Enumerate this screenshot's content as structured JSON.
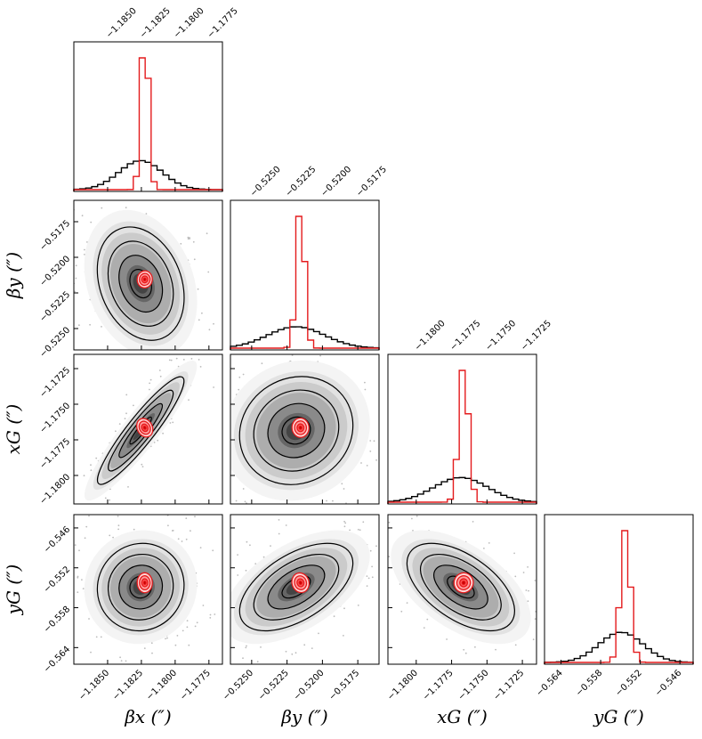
{
  "chart_data": {
    "type": "corner-plot",
    "parameters": [
      {
        "key": "bx",
        "label": "βx (″)",
        "range": [
          -1.1875,
          -1.1765
        ],
        "ticks": [
          -1.185,
          -1.1825,
          -1.18,
          -1.1775
        ],
        "tick_labels": [
          "−1.1850",
          "−1.1825",
          "−1.1800",
          "−1.1775"
        ]
      },
      {
        "key": "by",
        "label": "βy (″)",
        "range": [
          -0.5265,
          -0.516
        ],
        "ticks": [
          -0.525,
          -0.5225,
          -0.52,
          -0.5175
        ],
        "tick_labels": [
          "−0.5250",
          "−0.5225",
          "−0.5200",
          "−0.5175"
        ]
      },
      {
        "key": "xG",
        "label": "xG (″)",
        "range": [
          -1.182,
          -1.1715
        ],
        "ticks": [
          -1.18,
          -1.1775,
          -1.175,
          -1.1725
        ],
        "tick_labels": [
          "−1.1800",
          "−1.1775",
          "−1.1750",
          "−1.1725"
        ]
      },
      {
        "key": "yG",
        "label": "yG (″)",
        "range": [
          -0.5665,
          -0.544
        ],
        "ticks": [
          -0.564,
          -0.558,
          -0.552,
          -0.546
        ],
        "tick_labels": [
          "−0.564",
          "−0.558",
          "−0.552",
          "−0.546"
        ]
      }
    ],
    "distributions": {
      "black": {
        "color": "#000000",
        "mean": [
          -1.18255,
          -0.52185,
          -1.17685,
          -0.5549
        ],
        "std": [
          0.0016,
          0.002,
          0.0019,
          0.0033
        ]
      },
      "red": {
        "color": "#e41a1c",
        "mean": [
          -1.18225,
          -0.52155,
          -1.17665,
          -0.55425
        ],
        "std": [
          0.00028,
          0.0003,
          0.00034,
          0.00075
        ]
      }
    },
    "correlations_black": {
      "bx-by": -0.25,
      "bx-xG": 0.92,
      "by-xG": 0.1,
      "bx-yG": 0.05,
      "by-yG": 0.55,
      "xG-yG": -0.55
    },
    "grid": false,
    "legend": "none"
  }
}
